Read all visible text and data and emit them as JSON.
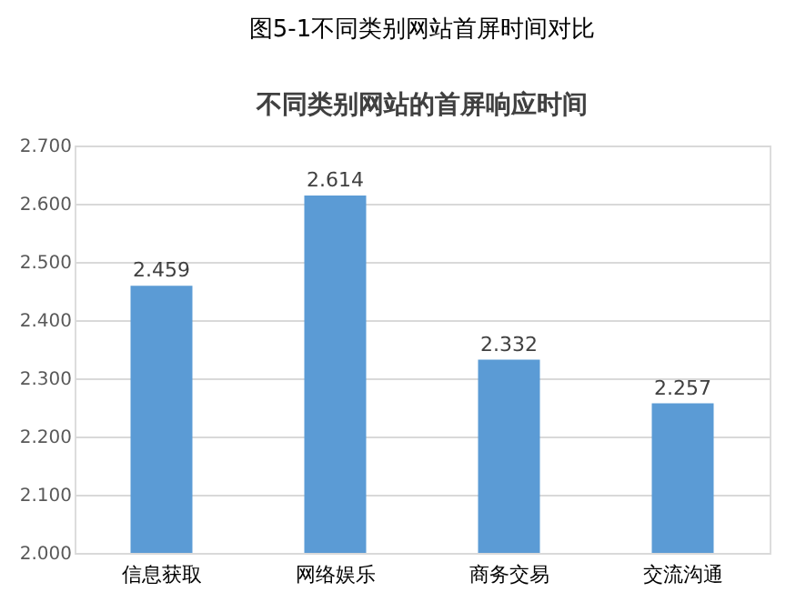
{
  "chart_data": {
    "type": "bar",
    "title": "图5-1不同类别网站首屏时间对比",
    "subtitle": "不同类别网站的首屏响应时间",
    "categories": [
      "信息获取",
      "网络娱乐",
      "商务交易",
      "交流沟通"
    ],
    "values": [
      2.459,
      2.614,
      2.332,
      2.257
    ],
    "color": "#5b9bd5",
    "ylim": [
      2.0,
      2.7
    ],
    "yticks": [
      {
        "value": 2.0,
        "label": "2.000"
      },
      {
        "value": 2.1,
        "label": "2.100"
      },
      {
        "value": 2.2,
        "label": "2.200"
      },
      {
        "value": 2.3,
        "label": "2.300"
      },
      {
        "value": 2.4,
        "label": "2.400"
      },
      {
        "value": 2.5,
        "label": "2.500"
      },
      {
        "value": 2.6,
        "label": "2.600"
      },
      {
        "value": 2.7,
        "label": "2.700"
      }
    ],
    "grid": "y",
    "data_labels": true
  }
}
